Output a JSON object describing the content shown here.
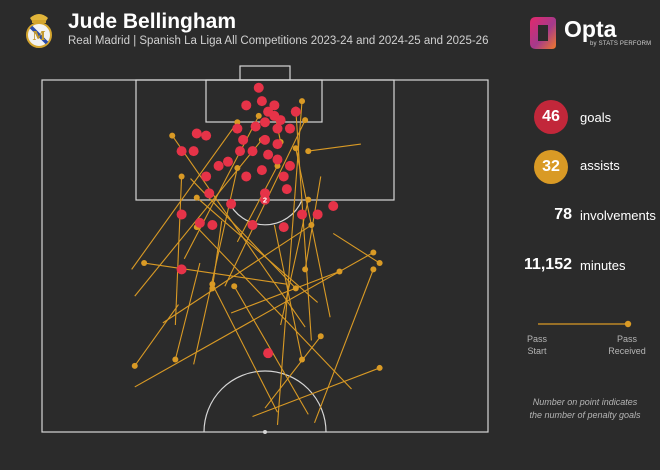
{
  "header": {
    "title": "Jude Bellingham",
    "subtitle": "Real Madrid | Spanish La Liga All Competitions 2023-24 and 2024-25 and 2025-26",
    "crest_icon": "real-madrid-crest-icon",
    "brand_icon": "opta-logo-icon",
    "brand_name": "Opta",
    "brand_sub": "by STATS PERFORM"
  },
  "stats": {
    "goals": {
      "value": "46",
      "label": "goals",
      "color": "#c2273a"
    },
    "assists": {
      "value": "32",
      "label": "assists",
      "color": "#d99a25"
    },
    "involvements": {
      "value": "78",
      "label": "involvements"
    },
    "minutes": {
      "value": "11,152",
      "label": "minutes"
    }
  },
  "legend": {
    "start_label": "Pass\nStart",
    "received_label": "Pass\nReceived",
    "note": "Number on point indicates\nthe number of penalty goals"
  },
  "colors": {
    "background": "#2b2b2b",
    "pitch_lines": "#d6d6d6",
    "goal": "#e63348",
    "assist": "#d99a25"
  },
  "chart_data": {
    "type": "scatter",
    "pitch": "half-pitch, attacking toward top goal",
    "axes": "x = pitch width (0 left touchline - 100 right touchline); y = distance from goal line (0 at goal line, 50 at halfway line)",
    "xlim": [
      0,
      100
    ],
    "ylim": [
      0,
      50
    ],
    "series": [
      {
        "name": "goals",
        "points": [
          {
            "x": 48.6,
            "y": 1.1
          },
          {
            "x": 49.3,
            "y": 3.0
          },
          {
            "x": 45.8,
            "y": 3.6
          },
          {
            "x": 52.1,
            "y": 3.6
          },
          {
            "x": 50.7,
            "y": 4.5
          },
          {
            "x": 56.9,
            "y": 4.5
          },
          {
            "x": 52.1,
            "y": 5.1
          },
          {
            "x": 53.5,
            "y": 5.7
          },
          {
            "x": 50.0,
            "y": 6.0
          },
          {
            "x": 47.9,
            "y": 6.6
          },
          {
            "x": 43.8,
            "y": 6.9
          },
          {
            "x": 52.8,
            "y": 6.9
          },
          {
            "x": 55.6,
            "y": 6.9
          },
          {
            "x": 34.7,
            "y": 7.6
          },
          {
            "x": 36.8,
            "y": 7.9
          },
          {
            "x": 45.1,
            "y": 8.5
          },
          {
            "x": 50.0,
            "y": 8.5
          },
          {
            "x": 52.8,
            "y": 9.1
          },
          {
            "x": 31.3,
            "y": 10.1
          },
          {
            "x": 34.0,
            "y": 10.1
          },
          {
            "x": 44.4,
            "y": 10.1
          },
          {
            "x": 47.2,
            "y": 10.1
          },
          {
            "x": 50.7,
            "y": 10.6
          },
          {
            "x": 52.8,
            "y": 11.3
          },
          {
            "x": 41.7,
            "y": 11.6
          },
          {
            "x": 39.6,
            "y": 12.2
          },
          {
            "x": 55.6,
            "y": 12.2
          },
          {
            "x": 49.3,
            "y": 12.8
          },
          {
            "x": 45.8,
            "y": 13.7
          },
          {
            "x": 54.2,
            "y": 13.7
          },
          {
            "x": 36.8,
            "y": 13.7
          },
          {
            "x": 54.9,
            "y": 15.5
          },
          {
            "x": 50.0,
            "y": 16.1
          },
          {
            "x": 37.5,
            "y": 16.1
          },
          {
            "x": 50.0,
            "y": 17.0,
            "penalties": 2
          },
          {
            "x": 42.4,
            "y": 17.6
          },
          {
            "x": 31.3,
            "y": 19.1
          },
          {
            "x": 58.3,
            "y": 19.1
          },
          {
            "x": 61.8,
            "y": 19.1
          },
          {
            "x": 35.4,
            "y": 20.3
          },
          {
            "x": 38.2,
            "y": 20.6
          },
          {
            "x": 47.2,
            "y": 20.6
          },
          {
            "x": 54.2,
            "y": 20.9
          },
          {
            "x": 65.3,
            "y": 17.9
          },
          {
            "x": 31.3,
            "y": 26.9
          },
          {
            "x": 50.7,
            "y": 38.8
          }
        ]
      },
      {
        "name": "assists",
        "passes": [
          {
            "start_x": 71.5,
            "start_y": 9.1,
            "end_x": 59.7,
            "end_y": 10.1
          },
          {
            "start_x": 64.6,
            "start_y": 33.7,
            "end_x": 56.9,
            "end_y": 9.7
          },
          {
            "start_x": 60.4,
            "start_y": 37.0,
            "end_x": 56.9,
            "end_y": 4.2
          },
          {
            "start_x": 52.8,
            "start_y": 49.0,
            "end_x": 58.3,
            "end_y": 3.0
          },
          {
            "start_x": 31.9,
            "start_y": 25.4,
            "end_x": 48.6,
            "end_y": 5.1
          },
          {
            "start_x": 20.1,
            "start_y": 26.9,
            "end_x": 43.8,
            "end_y": 6.0
          },
          {
            "start_x": 41.0,
            "start_y": 29.3,
            "end_x": 59.0,
            "end_y": 5.7
          },
          {
            "start_x": 20.8,
            "start_y": 30.7,
            "end_x": 49.3,
            "end_y": 8.5
          },
          {
            "start_x": 29.9,
            "start_y": 34.8,
            "end_x": 31.3,
            "end_y": 13.7
          },
          {
            "start_x": 34.0,
            "start_y": 40.4,
            "end_x": 43.8,
            "end_y": 12.5
          },
          {
            "start_x": 59.7,
            "start_y": 47.5,
            "end_x": 43.1,
            "end_y": 29.3
          },
          {
            "start_x": 69.4,
            "start_y": 43.9,
            "end_x": 34.7,
            "end_y": 20.9
          },
          {
            "start_x": 52.8,
            "start_y": 47.2,
            "end_x": 38.2,
            "end_y": 29.0
          },
          {
            "start_x": 61.8,
            "start_y": 31.6,
            "end_x": 34.7,
            "end_y": 16.7
          },
          {
            "start_x": 43.8,
            "start_y": 23.0,
            "end_x": 52.8,
            "end_y": 12.2
          },
          {
            "start_x": 59.0,
            "start_y": 35.1,
            "end_x": 29.2,
            "end_y": 7.9
          },
          {
            "start_x": 54.9,
            "start_y": 29.0,
            "end_x": 22.9,
            "end_y": 26.0
          },
          {
            "start_x": 27.1,
            "start_y": 34.5,
            "end_x": 60.4,
            "end_y": 20.6
          },
          {
            "start_x": 42.4,
            "start_y": 33.1,
            "end_x": 66.7,
            "end_y": 27.2
          },
          {
            "start_x": 53.5,
            "start_y": 34.8,
            "end_x": 59.7,
            "end_y": 17.0
          },
          {
            "start_x": 20.8,
            "start_y": 43.6,
            "end_x": 74.3,
            "end_y": 24.5
          },
          {
            "start_x": 65.3,
            "start_y": 21.8,
            "end_x": 75.7,
            "end_y": 26.0
          },
          {
            "start_x": 61.1,
            "start_y": 48.7,
            "end_x": 74.3,
            "end_y": 26.9
          },
          {
            "start_x": 50.0,
            "start_y": 46.6,
            "end_x": 62.5,
            "end_y": 36.4
          },
          {
            "start_x": 33.3,
            "start_y": 14.0,
            "end_x": 56.9,
            "end_y": 29.6
          },
          {
            "start_x": 40.3,
            "start_y": 20.0,
            "end_x": 38.2,
            "end_y": 29.6
          },
          {
            "start_x": 62.5,
            "start_y": 13.7,
            "end_x": 59.0,
            "end_y": 26.9
          },
          {
            "start_x": 47.2,
            "start_y": 47.8,
            "end_x": 75.7,
            "end_y": 40.9
          },
          {
            "start_x": 52.1,
            "start_y": 20.6,
            "end_x": 58.3,
            "end_y": 39.7
          },
          {
            "start_x": 30.6,
            "start_y": 31.9,
            "end_x": 20.8,
            "end_y": 40.6
          },
          {
            "start_x": 52.1,
            "start_y": 4.5,
            "end_x": 53.5,
            "end_y": 8.8
          },
          {
            "start_x": 35.4,
            "start_y": 26.0,
            "end_x": 29.9,
            "end_y": 39.7
          }
        ]
      }
    ]
  }
}
